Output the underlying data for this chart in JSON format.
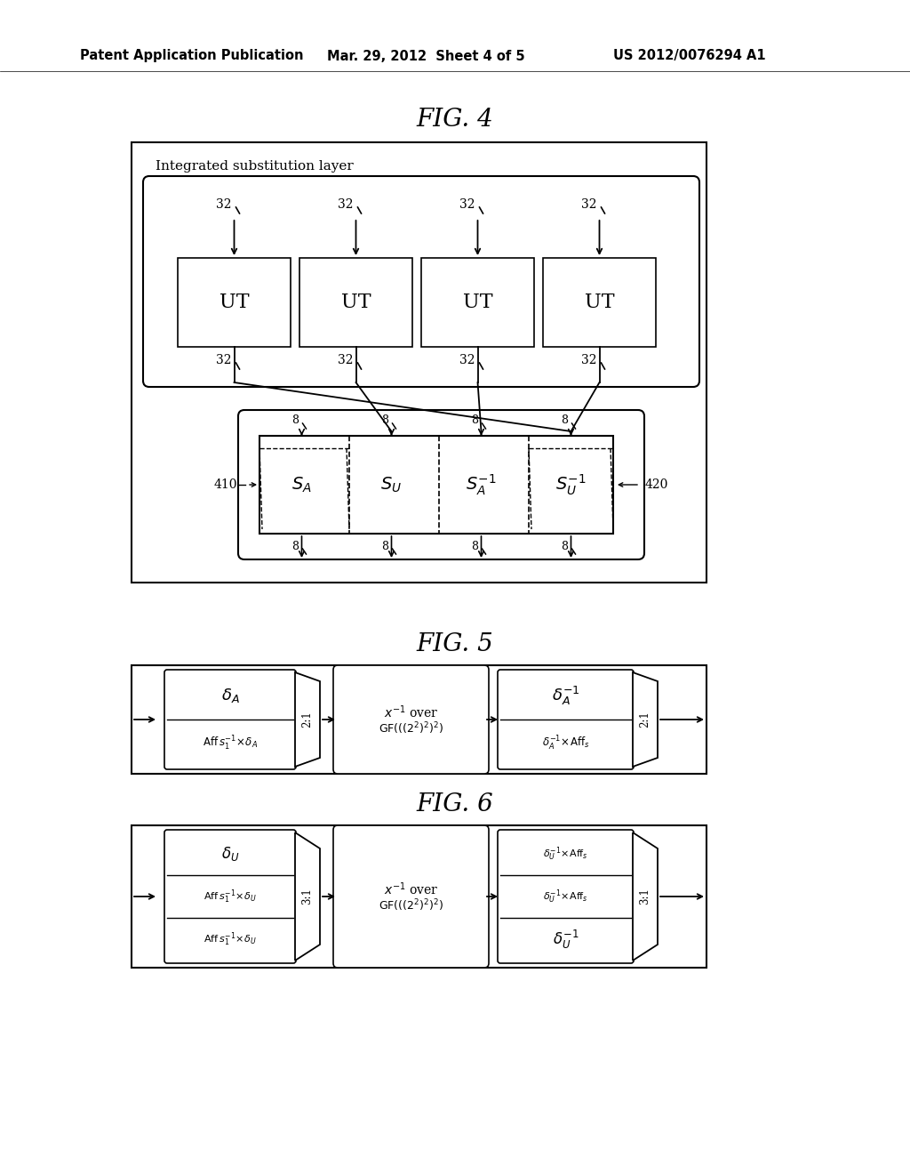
{
  "background_color": "#ffffff",
  "header_left": "Patent Application Publication",
  "header_center": "Mar. 29, 2012  Sheet 4 of 5",
  "header_right": "US 2012/0076294 A1"
}
